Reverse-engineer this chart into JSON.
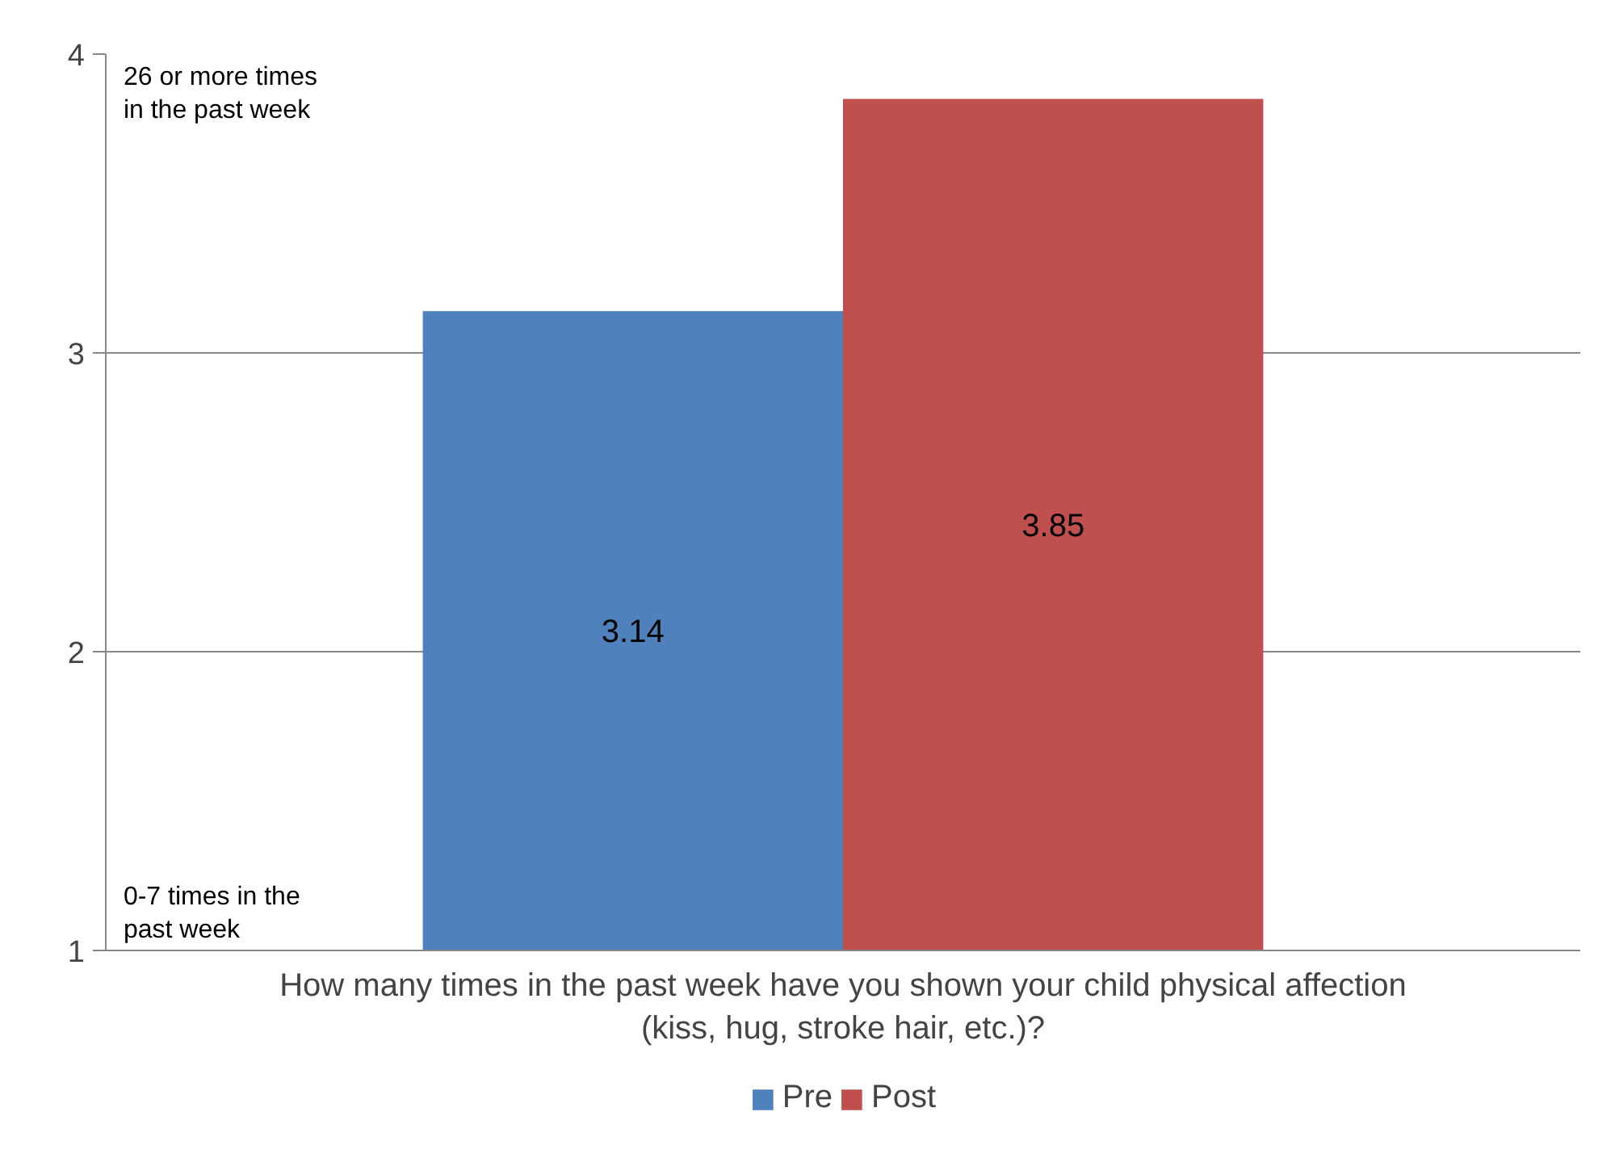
{
  "chart_data": {
    "type": "bar",
    "categories": [
      null
    ],
    "series": [
      {
        "name": "Pre",
        "color": "#4f81bd",
        "values": [
          3.14
        ]
      },
      {
        "name": "Post",
        "color": "#c0504d",
        "values": [
          3.85
        ]
      }
    ],
    "xlabel": "How many times in the past week have you shown your child physical affection (kiss, hug, stroke hair, etc.)?",
    "annotations": [
      "26 or more times in the past week",
      "0-7 times in the past week"
    ],
    "ylim": [
      1,
      4
    ],
    "yticks": [
      1,
      2,
      3,
      4
    ],
    "grid": "y",
    "legend": "bottom",
    "data_labels": true
  }
}
